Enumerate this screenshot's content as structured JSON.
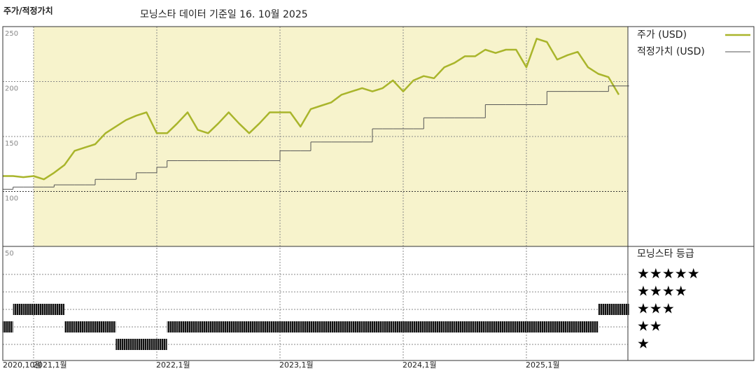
{
  "chart_data": {
    "type": "line",
    "title": "주가/적정가치",
    "subtitle": "모닝스타 데이터 기준일 16. 10월 2025",
    "x": [
      "2020-10",
      "2020-11",
      "2020-12",
      "2021-01",
      "2021-02",
      "2021-03",
      "2021-04",
      "2021-05",
      "2021-06",
      "2021-07",
      "2021-08",
      "2021-09",
      "2021-10",
      "2021-11",
      "2021-12",
      "2022-01",
      "2022-02",
      "2022-03",
      "2022-04",
      "2022-05",
      "2022-06",
      "2022-07",
      "2022-08",
      "2022-09",
      "2022-10",
      "2022-11",
      "2022-12",
      "2023-01",
      "2023-02",
      "2023-03",
      "2023-04",
      "2023-05",
      "2023-06",
      "2023-07",
      "2023-08",
      "2023-09",
      "2023-10",
      "2023-11",
      "2023-12",
      "2024-01",
      "2024-02",
      "2024-03",
      "2024-04",
      "2024-05",
      "2024-06",
      "2024-07",
      "2024-08",
      "2024-09",
      "2024-10",
      "2024-11",
      "2024-12",
      "2025-01",
      "2025-02",
      "2025-03",
      "2025-04",
      "2025-05",
      "2025-06",
      "2025-07",
      "2025-08",
      "2025-09",
      "2025-10"
    ],
    "series": [
      {
        "name": "주가 (USD)",
        "color": "#a9b52b",
        "values": [
          114,
          114,
          113,
          114,
          111,
          117,
          124,
          137,
          140,
          143,
          153,
          159,
          165,
          169,
          172,
          153,
          153,
          162,
          172,
          156,
          153,
          162,
          172,
          162,
          153,
          162,
          172,
          172,
          172,
          159,
          175,
          178,
          181,
          188,
          191,
          194,
          191,
          194,
          201,
          191,
          201,
          205,
          203,
          213,
          217,
          223,
          223,
          229,
          226,
          229,
          229,
          213,
          239,
          236,
          220,
          224,
          227,
          213,
          207,
          204,
          188
        ]
      },
      {
        "name": "적정가치 (USD)",
        "color": "#555555",
        "step": true,
        "values": [
          102,
          104,
          104,
          104,
          104,
          106,
          106,
          106,
          106,
          111,
          111,
          111,
          111,
          117,
          117,
          122,
          128,
          128,
          128,
          128,
          128,
          128,
          128,
          128,
          128,
          128,
          128,
          137,
          137,
          137,
          145,
          145,
          145,
          145,
          145,
          145,
          157,
          157,
          157,
          157,
          157,
          167,
          167,
          167,
          167,
          167,
          167,
          179,
          179,
          179,
          179,
          179,
          179,
          191,
          191,
          191,
          191,
          191,
          191,
          196,
          196
        ]
      }
    ],
    "ylim": [
      50,
      250
    ],
    "yticks": [
      50,
      100,
      150,
      200,
      250
    ],
    "xticks": [
      {
        "value": "2020-10",
        "label": "2020,10월"
      },
      {
        "value": "2021-01",
        "label": "2021,1월"
      },
      {
        "value": "2022-01",
        "label": "2022,1월"
      },
      {
        "value": "2023-01",
        "label": "2023,1월"
      },
      {
        "value": "2024-01",
        "label": "2024,1월"
      },
      {
        "value": "2025-01",
        "label": "2025,1월"
      }
    ],
    "grid": true,
    "background": "#f7f3cc",
    "ratings": {
      "title": "모닝스타 등급",
      "levels": [
        {
          "value": 5,
          "label": "★★★★★"
        },
        {
          "value": 4,
          "label": "★★★★"
        },
        {
          "value": 3,
          "label": "★★★"
        },
        {
          "value": 2,
          "label": "★★"
        },
        {
          "value": 1,
          "label": "★"
        }
      ],
      "values": [
        2,
        3,
        3,
        3,
        3,
        3,
        2,
        2,
        2,
        2,
        2,
        1,
        1,
        1,
        1,
        1,
        2,
        2,
        2,
        2,
        2,
        2,
        2,
        2,
        2,
        2,
        2,
        2,
        2,
        2,
        2,
        2,
        2,
        2,
        2,
        2,
        2,
        2,
        2,
        2,
        2,
        2,
        2,
        2,
        2,
        2,
        2,
        2,
        2,
        2,
        2,
        2,
        2,
        2,
        2,
        2,
        2,
        2,
        3,
        3,
        3
      ]
    }
  }
}
